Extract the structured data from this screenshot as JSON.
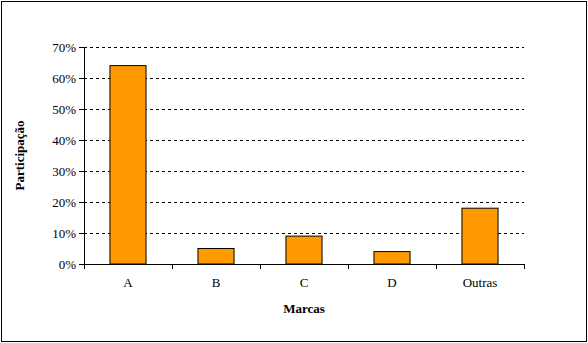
{
  "chart_data": {
    "type": "bar",
    "xlabel": "Marcas",
    "ylabel": "Participação",
    "categories": [
      "A",
      "B",
      "C",
      "D",
      "Outras"
    ],
    "values": [
      64,
      5,
      9,
      4,
      18
    ],
    "color": "#FF9900",
    "ylim": [
      0,
      70
    ],
    "yticks": [
      {
        "value": 0,
        "label": "0%"
      },
      {
        "value": 10,
        "label": "10%"
      },
      {
        "value": 20,
        "label": "20%"
      },
      {
        "value": 30,
        "label": "30%"
      },
      {
        "value": 40,
        "label": "40%"
      },
      {
        "value": 50,
        "label": "50%"
      },
      {
        "value": 60,
        "label": "60%"
      },
      {
        "value": 70,
        "label": "70%"
      }
    ],
    "grid": true
  }
}
